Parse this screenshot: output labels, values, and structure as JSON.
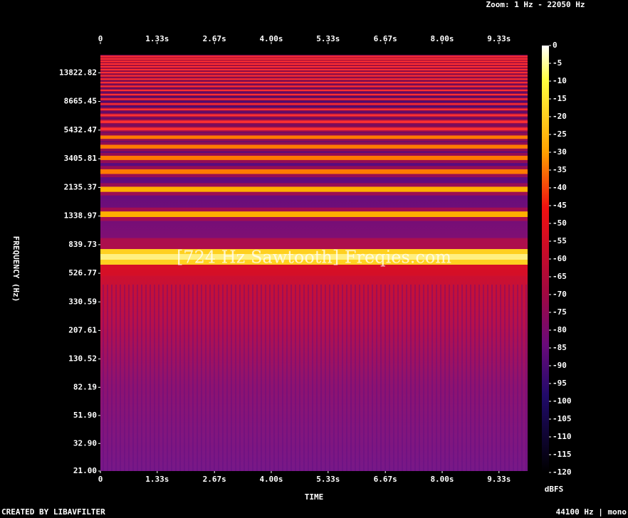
{
  "header": {
    "zoom": "Zoom: 1 Hz - 22050 Hz"
  },
  "chart_data": {
    "type": "spectrogram",
    "title": "[724 Hz Sawtooth] Freqies.com",
    "x_label": "TIME",
    "y_label": "FREQUENCY (Hz)",
    "xlim": [
      0,
      10
    ],
    "xticks": [
      0,
      {
        "value": 1.33,
        "label": "1.33s"
      },
      {
        "value": 2.67,
        "label": "2.67s"
      },
      {
        "value": 4,
        "label": "4.00s"
      },
      {
        "value": 5.33,
        "label": "5.33s"
      },
      {
        "value": 6.67,
        "label": "6.67s"
      },
      {
        "value": 8,
        "label": "8.00s"
      },
      {
        "value": 9.33,
        "label": "9.33s"
      }
    ],
    "ylim": [
      21,
      22050
    ],
    "yscale": "log",
    "yticks": [
      {
        "value": 21,
        "label": "21.00"
      },
      {
        "value": 32.9,
        "label": "32.90"
      },
      {
        "value": 51.9,
        "label": "51.90"
      },
      82.19,
      130.52,
      207.61,
      330.59,
      526.77,
      839.73,
      1338.97,
      2135.37,
      3405.81,
      5432.47,
      8665.45,
      13822.82
    ],
    "colorbar": {
      "label": "dBFS",
      "lim": [
        -120,
        0
      ],
      "ticks": [
        0,
        -5,
        -10,
        -15,
        -20,
        -25,
        -30,
        -35,
        -40,
        -45,
        -50,
        -55,
        -60,
        -65,
        -70,
        -75,
        -80,
        -85,
        -90,
        -95,
        -100,
        -105,
        -110,
        -115,
        -120
      ]
    }
  },
  "footer": {
    "left": "CREATED BY LIBAVFILTER",
    "right": "44100 Hz | mono"
  }
}
